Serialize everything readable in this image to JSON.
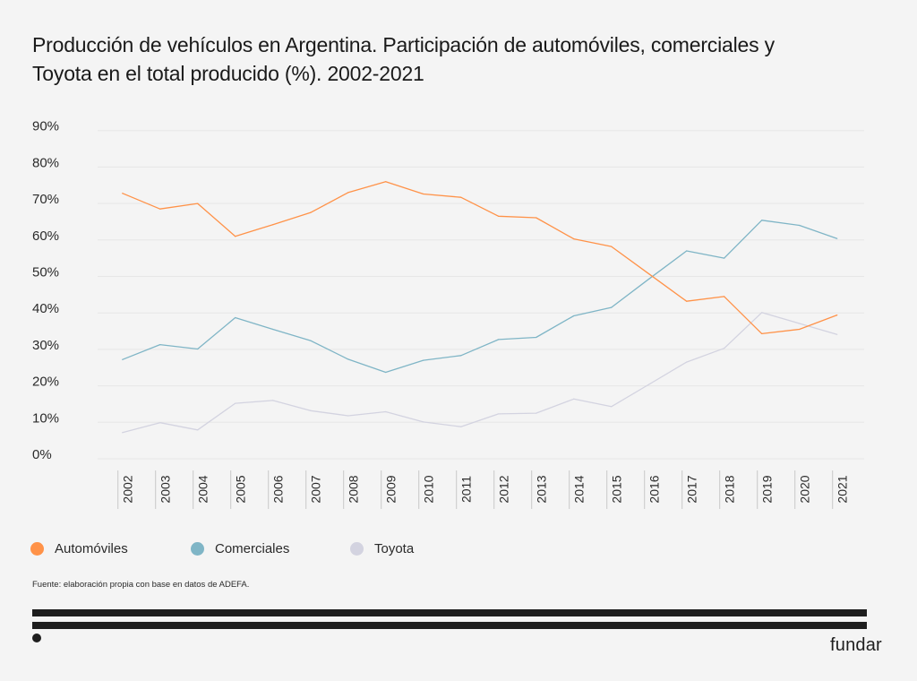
{
  "title": "Producción de vehículos en Argentina. Participación de automóviles, comerciales y Toyota en el total producido (%). 2002-2021",
  "legend": [
    {
      "label": "Automóviles",
      "color": "#FF9248"
    },
    {
      "label": "Comerciales",
      "color": "#7FB5C6"
    },
    {
      "label": "Toyota",
      "color": "#D3D3E0"
    }
  ],
  "source": "Fuente: elaboración propia con base en datos de ADEFA.",
  "logo": "fundar",
  "chart_data": {
    "type": "line",
    "title": "Producción de vehículos en Argentina. Participación de automóviles, comerciales y Toyota en el total producido (%). 2002-2021",
    "xlabel": "",
    "ylabel": "",
    "ylim": [
      0,
      90
    ],
    "yticks": [
      0,
      10,
      20,
      30,
      40,
      50,
      60,
      70,
      80,
      90
    ],
    "ytick_labels": [
      "0%",
      "10%",
      "20%",
      "30%",
      "40%",
      "50%",
      "60%",
      "70%",
      "80%",
      "90%"
    ],
    "grid": true,
    "legend_position": "bottom-left",
    "categories": [
      "2002",
      "2003",
      "2004",
      "2005",
      "2006",
      "2007",
      "2008",
      "2009",
      "2010",
      "2011",
      "2012",
      "2013",
      "2014",
      "2015",
      "2016",
      "2017",
      "2018",
      "2019",
      "2020",
      "2021"
    ],
    "series": [
      {
        "name": "Automóviles",
        "color": "#FF9248",
        "values": [
          72.8,
          68.5,
          70.0,
          61.0,
          64.2,
          67.5,
          73.0,
          76.0,
          72.6,
          71.7,
          66.5,
          66.1,
          60.3,
          58.2,
          50.7,
          43.2,
          44.5,
          34.3,
          35.5,
          39.4
        ]
      },
      {
        "name": "Comerciales",
        "color": "#7FB5C6",
        "values": [
          27.2,
          31.3,
          30.1,
          38.7,
          35.5,
          32.4,
          27.3,
          23.7,
          27.0,
          28.3,
          32.7,
          33.3,
          39.2,
          41.5,
          49.3,
          57.0,
          55.0,
          65.4,
          64.0,
          60.4
        ]
      },
      {
        "name": "Toyota",
        "color": "#D3D3E0",
        "values": [
          7.2,
          9.9,
          7.9,
          15.2,
          16.0,
          13.2,
          11.8,
          12.9,
          10.1,
          8.8,
          12.3,
          12.5,
          16.4,
          14.3,
          20.4,
          26.5,
          30.3,
          40.1,
          37.1,
          34.1
        ]
      }
    ]
  }
}
